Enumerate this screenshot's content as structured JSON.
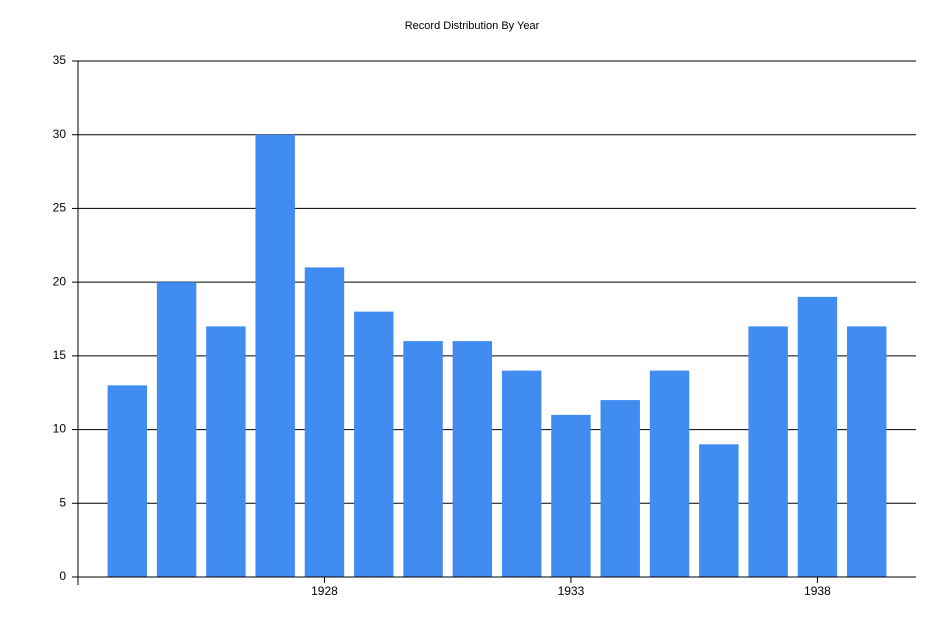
{
  "chart_data": {
    "type": "bar",
    "title": "Record Distribution By Year",
    "x": [
      1924,
      1925,
      1926,
      1927,
      1928,
      1929,
      1930,
      1931,
      1932,
      1933,
      1934,
      1935,
      1936,
      1937,
      1938,
      1939
    ],
    "values": [
      13,
      20,
      17,
      30,
      21,
      18,
      16,
      16,
      14,
      11,
      12,
      14,
      9,
      17,
      19,
      17
    ],
    "color": "#418cf0",
    "xlim": [
      1923,
      1940
    ],
    "xticks": [
      1928,
      1933,
      1938
    ],
    "ylim": [
      0,
      35
    ],
    "yticks": [
      0,
      5,
      10,
      15,
      20,
      25,
      30,
      35
    ],
    "grid": true
  }
}
